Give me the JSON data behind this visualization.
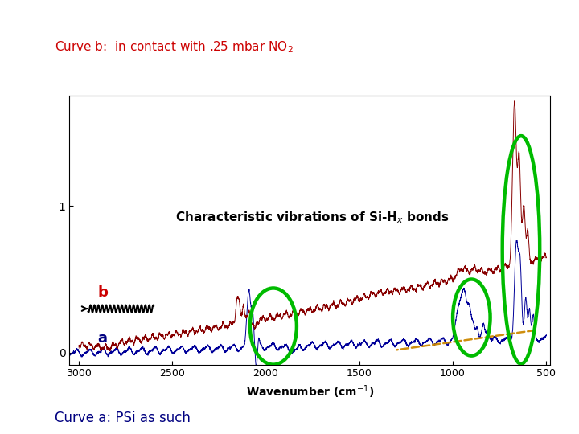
{
  "title_top": "Curve b:  in contact with .25 mbar NO",
  "title_top_sub2": "2",
  "title_top_color": "#cc0000",
  "title_bottom": "Curve a: PSi as such",
  "title_bottom_color": "#000080",
  "annotation_text": "Characteristic vibrations of Si-H",
  "annotation_sub": "x",
  "annotation_suffix": " bonds",
  "bg_color": "#ffffff",
  "plot_bg": "#ffffff",
  "xmin": 500,
  "xmax": 3000,
  "ymin": -0.08,
  "ymax": 1.75,
  "yticks": [
    0,
    1
  ],
  "label_b_color": "#cc0000",
  "label_a_color": "#000080",
  "ellipse_color": "#00bb00",
  "ellipse_lw": 3.2,
  "curve_b_color": "#880000",
  "curve_a_color": "#000099",
  "dashed_color": "#cc8800"
}
